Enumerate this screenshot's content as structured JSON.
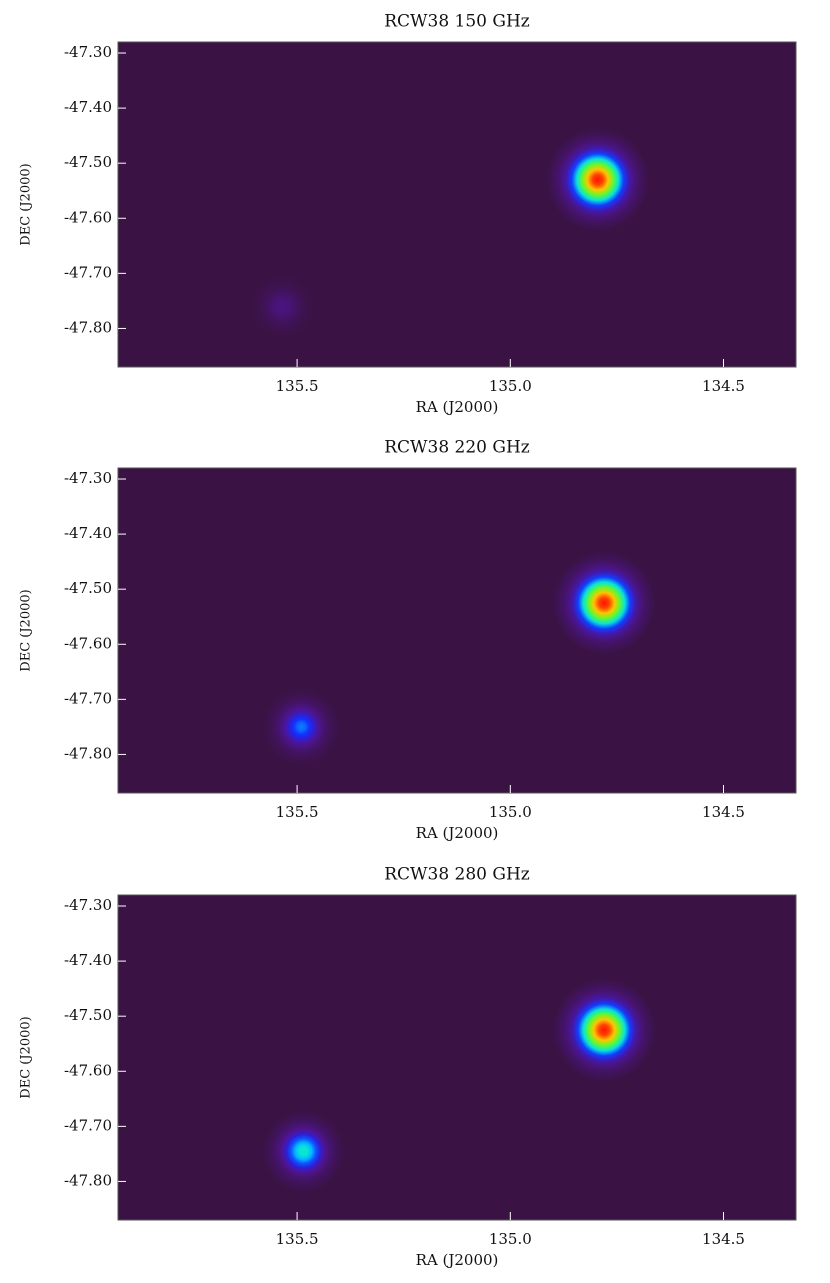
{
  "chart_data": [
    {
      "type": "heatmap",
      "title": "RCW38 150 GHz",
      "x_label": "RA (J2000)",
      "y_label": "DEC (J2000)",
      "xlim": [
        135.92,
        134.33
      ],
      "ylim": [
        -47.87,
        -47.28
      ],
      "xticks": [
        135.5,
        {
          "value": 135,
          "label": "135.0"
        },
        134.5
      ],
      "yticks": [
        {
          "value": -47.3,
          "label": "-47.30"
        },
        {
          "value": -47.4,
          "label": "-47.40"
        },
        {
          "value": -47.5,
          "label": "-47.50"
        },
        {
          "value": -47.6,
          "label": "-47.60"
        },
        {
          "value": -47.7,
          "label": "-47.70"
        },
        {
          "value": -47.8,
          "label": "-47.80"
        }
      ],
      "x": [
        134.795,
        135.535
      ],
      "y": [
        -47.53,
        -47.76
      ],
      "values": [
        1.0,
        0.15
      ]
    },
    {
      "type": "heatmap",
      "title": "RCW38 220 GHz",
      "x_label": "RA (J2000)",
      "y_label": "DEC (J2000)",
      "xlim": [
        135.92,
        134.33
      ],
      "ylim": [
        -47.87,
        -47.28
      ],
      "xticks": [
        135.5,
        {
          "value": 135,
          "label": "135.0"
        },
        134.5
      ],
      "yticks": [
        {
          "value": -47.3,
          "label": "-47.30"
        },
        {
          "value": -47.4,
          "label": "-47.40"
        },
        {
          "value": -47.5,
          "label": "-47.50"
        },
        {
          "value": -47.6,
          "label": "-47.60"
        },
        {
          "value": -47.7,
          "label": "-47.70"
        },
        {
          "value": -47.8,
          "label": "-47.80"
        }
      ],
      "x": [
        134.78,
        135.49
      ],
      "y": [
        -47.525,
        -47.75
      ],
      "values": [
        1.0,
        0.42
      ]
    },
    {
      "type": "heatmap",
      "title": "RCW38 280 GHz",
      "x_label": "RA (J2000)",
      "y_label": "DEC (J2000)",
      "xlim": [
        135.92,
        134.33
      ],
      "ylim": [
        -47.87,
        -47.28
      ],
      "xticks": [
        135.5,
        {
          "value": 135,
          "label": "135.0"
        },
        134.5
      ],
      "yticks": [
        {
          "value": -47.3,
          "label": "-47.30"
        },
        {
          "value": -47.4,
          "label": "-47.40"
        },
        {
          "value": -47.5,
          "label": "-47.50"
        },
        {
          "value": -47.6,
          "label": "-47.60"
        },
        {
          "value": -47.7,
          "label": "-47.70"
        },
        {
          "value": -47.8,
          "label": "-47.80"
        }
      ],
      "x": [
        134.78,
        135.485
      ],
      "y": [
        -47.525,
        -47.745
      ],
      "values": [
        1.0,
        0.55
      ]
    }
  ]
}
